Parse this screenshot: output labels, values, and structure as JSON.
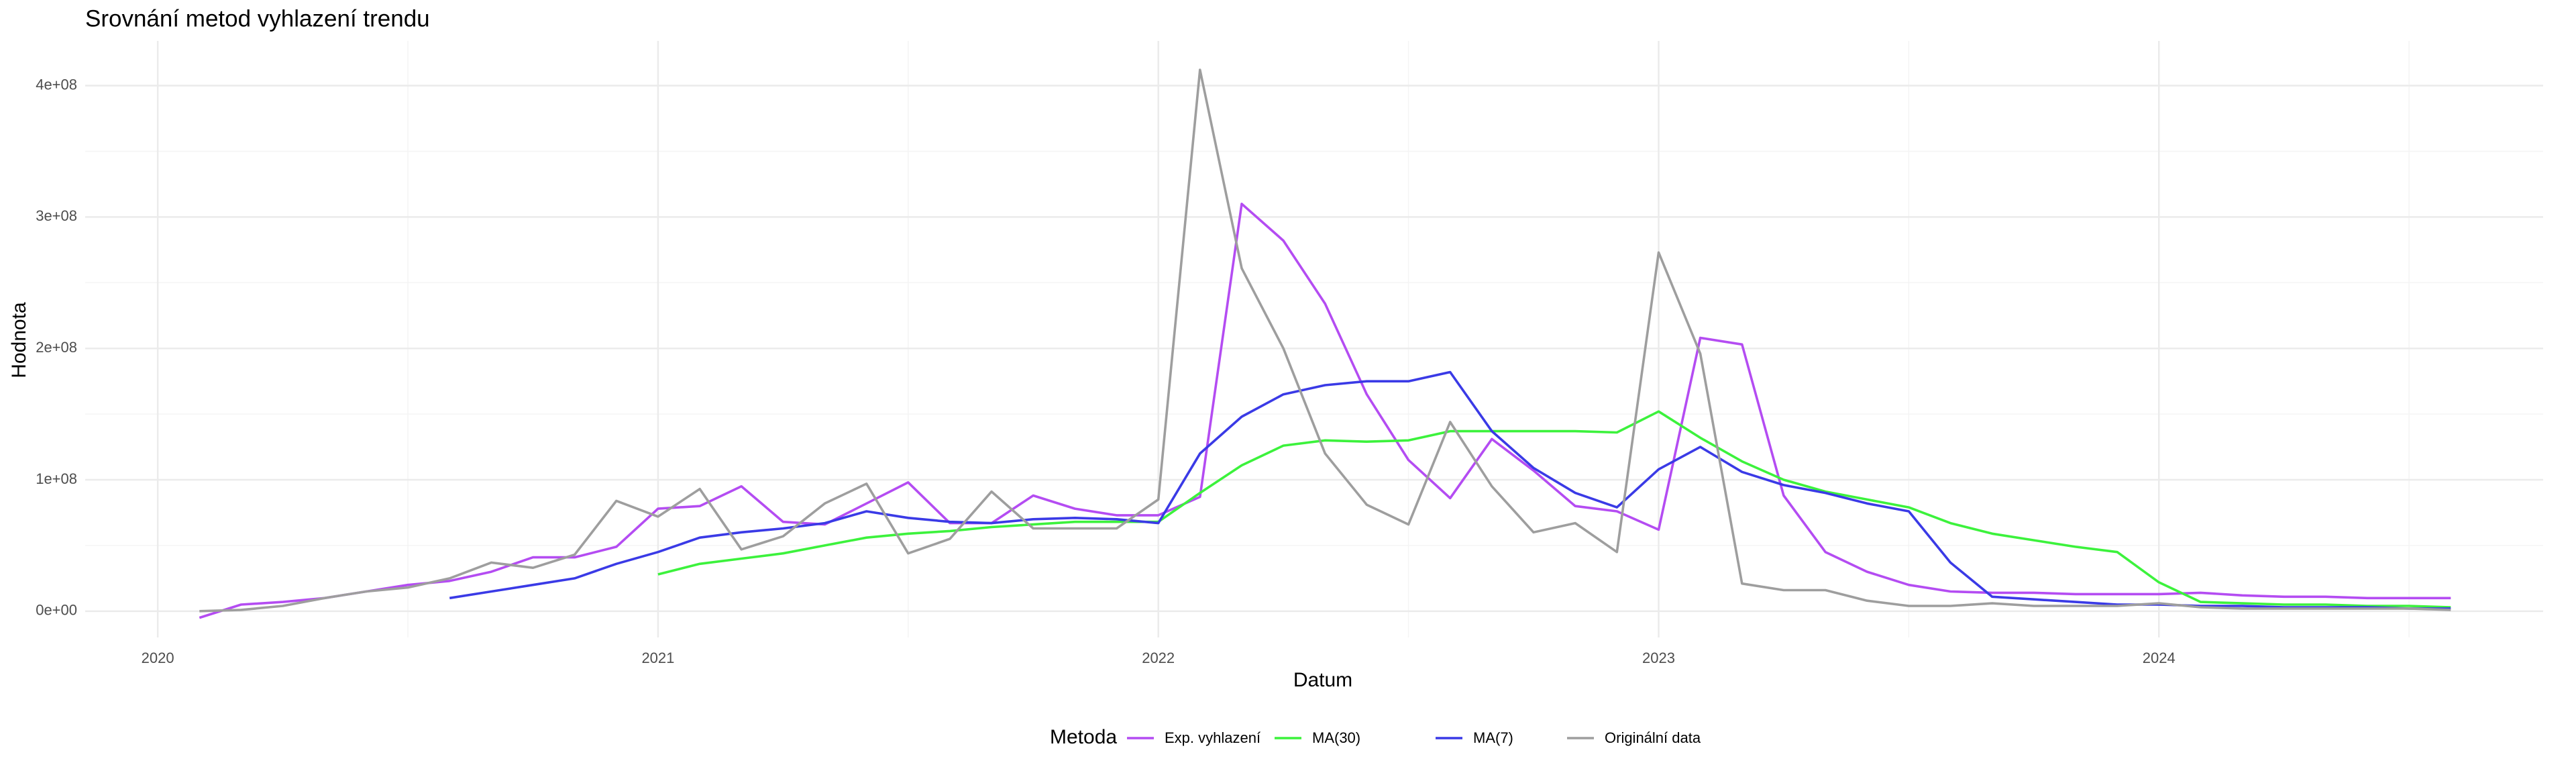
{
  "chart_data": {
    "type": "line",
    "title": "Srovnání metod vyhlazení trendu",
    "x_label": "Datum",
    "y_label": "Hodnota",
    "legend_title": "Metoda",
    "legend_position": "bottom",
    "grid": true,
    "x": [
      "2020-02",
      "2020-03",
      "2020-04",
      "2020-05",
      "2020-06",
      "2020-07",
      "2020-08",
      "2020-09",
      "2020-10",
      "2020-11",
      "2020-12",
      "2021-01",
      "2021-02",
      "2021-03",
      "2021-04",
      "2021-05",
      "2021-06",
      "2021-07",
      "2021-08",
      "2021-09",
      "2021-10",
      "2021-11",
      "2021-12",
      "2022-01",
      "2022-02",
      "2022-03",
      "2022-04",
      "2022-05",
      "2022-06",
      "2022-07",
      "2022-08",
      "2022-09",
      "2022-10",
      "2022-11",
      "2022-12",
      "2023-01",
      "2023-02",
      "2023-03",
      "2023-04",
      "2023-05",
      "2023-06",
      "2023-07",
      "2023-08",
      "2023-09",
      "2023-10",
      "2023-11",
      "2023-12",
      "2024-01",
      "2024-02",
      "2024-03",
      "2024-04",
      "2024-05",
      "2024-06",
      "2024-07",
      "2024-08"
    ],
    "xlim": [
      2019.855,
      2024.768
    ],
    "xticks": [
      2020,
      2021,
      2022,
      2023,
      2024
    ],
    "ylim": [
      -20000000.0,
      434000000.0
    ],
    "yticks": [
      {
        "value": 0,
        "label": "0e+00"
      },
      {
        "value": 100000000.0,
        "label": "1e+08"
      },
      {
        "value": 200000000.0,
        "label": "2e+08"
      },
      {
        "value": 300000000.0,
        "label": "3e+08"
      },
      {
        "value": 400000000.0,
        "label": "4e+08"
      }
    ],
    "series": [
      {
        "name": "Exp. vyhlazení",
        "color": "#b44cf2",
        "values": [
          -5000000.0,
          5000000.0,
          7000000.0,
          10000000.0,
          15000000.0,
          20000000.0,
          23000000.0,
          30000000.0,
          41000000.0,
          41000000.0,
          49000000.0,
          78000000.0,
          80000000.0,
          95000000.0,
          68000000.0,
          66000000.0,
          82000000.0,
          98000000.0,
          67000000.0,
          67000000.0,
          88000000.0,
          78000000.0,
          73000000.0,
          73000000.0,
          87000000.0,
          310000000.0,
          282000000.0,
          234000000.0,
          165000000.0,
          115000000.0,
          86000000.0,
          131000000.0,
          107000000.0,
          80000000.0,
          76000000.0,
          62000000.0,
          208000000.0,
          203000000.0,
          88000000.0,
          45000000.0,
          30000000.0,
          20000000.0,
          15000000.0,
          14000000.0,
          14000000.0,
          13000000.0,
          13000000.0,
          13000000.0,
          14000000.0,
          12000000.0,
          11000000.0,
          11000000.0,
          10000000.0,
          10000000.0,
          10000000.0
        ]
      },
      {
        "name": "MA(30)",
        "color": "#3cf23c",
        "values": [
          null,
          null,
          null,
          null,
          null,
          null,
          null,
          null,
          null,
          null,
          null,
          28000000.0,
          36000000.0,
          40000000.0,
          44000000.0,
          50000000.0,
          56000000.0,
          59000000.0,
          61000000.0,
          64000000.0,
          66000000.0,
          68000000.0,
          68000000.0,
          68000000.0,
          90000000.0,
          111000000.0,
          126000000.0,
          130000000.0,
          129000000.0,
          130000000.0,
          137000000.0,
          137000000.0,
          137000000.0,
          137000000.0,
          136000000.0,
          152000000.0,
          132000000.0,
          114000000.0,
          100000000.0,
          91000000.0,
          85000000.0,
          79000000.0,
          67000000.0,
          59000000.0,
          54000000.0,
          49000000.0,
          45000000.0,
          22000000.0,
          7000000.0,
          6000000.0,
          5000000.0,
          5000000.0,
          4000000.0,
          4000000.0,
          3000000.0
        ]
      },
      {
        "name": "MA(7)",
        "color": "#3a3ae6",
        "values": [
          null,
          null,
          null,
          null,
          null,
          null,
          10000000.0,
          15000000.0,
          20000000.0,
          25000000.0,
          36000000.0,
          45000000.0,
          56000000.0,
          60000000.0,
          63000000.0,
          67000000.0,
          76000000.0,
          71000000.0,
          68000000.0,
          67000000.0,
          70000000.0,
          71000000.0,
          70000000.0,
          67000000.0,
          120000000.0,
          148000000.0,
          165000000.0,
          172000000.0,
          175000000.0,
          175000000.0,
          182000000.0,
          137000000.0,
          109000000.0,
          90000000.0,
          79000000.0,
          108000000.0,
          125000000.0,
          106000000.0,
          96000000.0,
          90000000.0,
          82000000.0,
          76000000.0,
          37000000.0,
          11000000.0,
          9000000.0,
          7000000.0,
          5000000.0,
          5000000.0,
          4000000.0,
          4000000.0,
          3000000.0,
          3000000.0,
          3000000.0,
          2000000.0,
          2000000.0
        ]
      },
      {
        "name": "Originální data",
        "color": "#9e9e9e",
        "values": [
          0,
          1000000.0,
          4000000.0,
          10000000.0,
          15000000.0,
          18000000.0,
          25000000.0,
          37000000.0,
          33000000.0,
          43000000.0,
          84000000.0,
          72000000.0,
          93000000.0,
          47000000.0,
          57000000.0,
          82000000.0,
          97000000.0,
          44000000.0,
          55000000.0,
          91000000.0,
          63000000.0,
          63000000.0,
          63000000.0,
          85000000.0,
          412000000.0,
          261000000.0,
          200000000.0,
          120000000.0,
          81000000.0,
          66000000.0,
          144000000.0,
          95000000.0,
          60000000.0,
          67000000.0,
          45000000.0,
          273000000.0,
          196000000.0,
          21000000.0,
          16000000.0,
          16000000.0,
          8000000.0,
          4000000.0,
          4000000.0,
          6000000.0,
          4000000.0,
          4000000.0,
          4000000.0,
          6000000.0,
          3000000.0,
          2000000.0,
          2000000.0,
          2000000.0,
          2000000.0,
          2000000.0,
          1000000.0
        ]
      }
    ]
  }
}
